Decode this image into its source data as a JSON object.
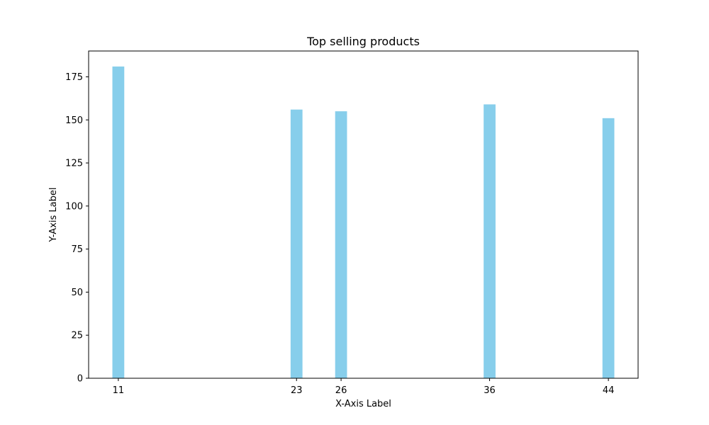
{
  "chart_data": {
    "type": "bar",
    "title": "Top selling products",
    "xlabel": "X-Axis Label",
    "ylabel": "Y-Axis Label",
    "x": [
      11,
      23,
      26,
      36,
      44
    ],
    "values": [
      181,
      156,
      155,
      159,
      151
    ],
    "bar_color": "#87ceeb",
    "xlim": [
      9,
      46
    ],
    "ylim": [
      0,
      190
    ],
    "yticks": [
      0,
      25,
      50,
      75,
      100,
      125,
      150,
      175
    ],
    "xticks": [
      11,
      23,
      26,
      36,
      44
    ],
    "grid": false,
    "legend": false
  }
}
